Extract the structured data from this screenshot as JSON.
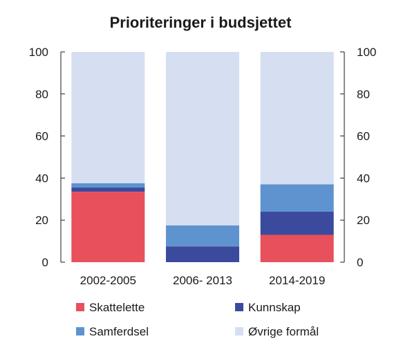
{
  "chart_data": {
    "type": "bar",
    "stacked": true,
    "title": "Prioriteringer i budsjettet",
    "xlabel": "",
    "ylabel": "",
    "ylim": [
      0,
      100
    ],
    "y_ticks": [
      "0",
      "20",
      "40",
      "60",
      "80",
      "100"
    ],
    "secondary_y_axis": true,
    "grid": false,
    "categories": [
      "2002-2005",
      "2006- 2013",
      "2014-2019"
    ],
    "series": [
      {
        "name": "Skattelette",
        "color": "#e8505b",
        "values": [
          33.5,
          0,
          13
        ]
      },
      {
        "name": "Kunnskap",
        "color": "#3b4a9c",
        "values": [
          2,
          7.5,
          11
        ]
      },
      {
        "name": "Samferdsel",
        "color": "#5f93cf",
        "values": [
          2,
          10,
          13
        ]
      },
      {
        "name": "Øvrige formål",
        "color": "#d6def2",
        "values": [
          62.5,
          82.5,
          63
        ]
      }
    ],
    "legend_position": "bottom"
  }
}
